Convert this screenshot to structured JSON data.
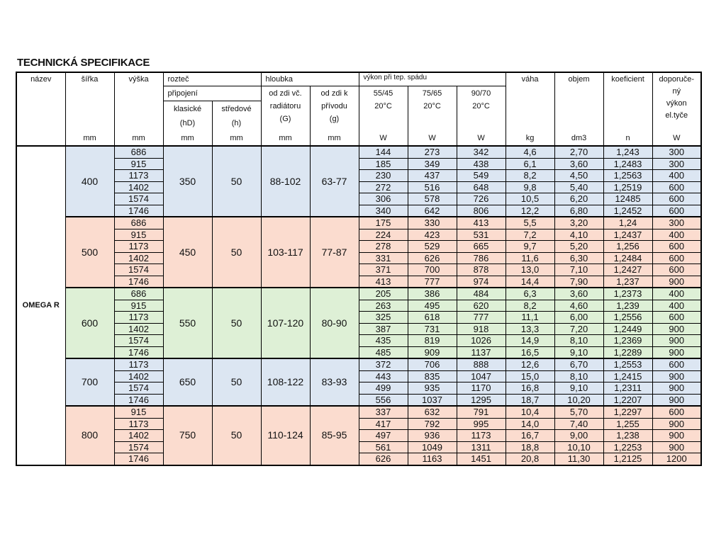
{
  "title": "TECHNICKÁ SPECIFIKACE",
  "headers": {
    "name": "název",
    "width": "šířka",
    "height": "výška",
    "spacing": "rozteč",
    "connection": "připojení",
    "classic": "klasické\n(hD)",
    "central": "středové\n(h)",
    "depth": "hloubka",
    "depth_g_big": "od zdi  vč.\nradiátoru\n(G)",
    "depth_g_small": "od zdi  k\npřívodu\n(g)",
    "output": "výkon při tep. spádu",
    "t1": "55/45\n20°C",
    "t2": "75/65\n20°C",
    "t3": "90/70\n20°C",
    "weight": "váha",
    "volume": "objem",
    "coef": "koeficient",
    "heater": "doporuče-\nný\nvýkon\nel.tyče"
  },
  "units": [
    "",
    "mm",
    "mm",
    "mm",
    "mm",
    "mm",
    "mm",
    "W",
    "W",
    "W",
    "kg",
    "dm3",
    "n",
    "W"
  ],
  "model": "OMEGA R",
  "groups": [
    {
      "width": "400",
      "hD": "350",
      "h": "50",
      "G": "88-102",
      "g": "63-77",
      "color": "#dce6f2",
      "rows": [
        [
          "686",
          "144",
          "273",
          "342",
          "4,6",
          "2,70",
          "1,243",
          "300"
        ],
        [
          "915",
          "185",
          "349",
          "438",
          "6,1",
          "3,60",
          "1,2483",
          "300"
        ],
        [
          "1173",
          "230",
          "437",
          "549",
          "8,2",
          "4,50",
          "1,2563",
          "400"
        ],
        [
          "1402",
          "272",
          "516",
          "648",
          "9,8",
          "5,40",
          "1,2519",
          "600"
        ],
        [
          "1574",
          "306",
          "578",
          "726",
          "10,5",
          "6,20",
          "12485",
          "600"
        ],
        [
          "1746",
          "340",
          "642",
          "806",
          "12,2",
          "6,80",
          "1,2452",
          "600"
        ]
      ]
    },
    {
      "width": "500",
      "hD": "450",
      "h": "50",
      "G": "103-117",
      "g": "77-87",
      "color": "#fbdccf",
      "rows": [
        [
          "686",
          "175",
          "330",
          "413",
          "5,5",
          "3,20",
          "1,24",
          "300"
        ],
        [
          "915",
          "224",
          "423",
          "531",
          "7,2",
          "4,10",
          "1,2437",
          "400"
        ],
        [
          "1173",
          "278",
          "529",
          "665",
          "9,7",
          "5,20",
          "1,256",
          "600"
        ],
        [
          "1402",
          "331",
          "626",
          "786",
          "11,6",
          "6,30",
          "1,2484",
          "600"
        ],
        [
          "1574",
          "371",
          "700",
          "878",
          "13,0",
          "7,10",
          "1,2427",
          "600"
        ],
        [
          "1746",
          "413",
          "777",
          "974",
          "14,4",
          "7,90",
          "1,237",
          "900"
        ]
      ]
    },
    {
      "width": "600",
      "hD": "550",
      "h": "50",
      "G": "107-120",
      "g": "80-90",
      "color": "#def0d6",
      "rows": [
        [
          "686",
          "205",
          "386",
          "484",
          "6,3",
          "3,60",
          "1,2373",
          "400"
        ],
        [
          "915",
          "263",
          "495",
          "620",
          "8,2",
          "4,60",
          "1,239",
          "400"
        ],
        [
          "1173",
          "325",
          "618",
          "777",
          "11,1",
          "6,00",
          "1,2556",
          "600"
        ],
        [
          "1402",
          "387",
          "731",
          "918",
          "13,3",
          "7,20",
          "1,2449",
          "900"
        ],
        [
          "1574",
          "435",
          "819",
          "1026",
          "14,9",
          "8,10",
          "1,2369",
          "900"
        ],
        [
          "1746",
          "485",
          "909",
          "1137",
          "16,5",
          "9,10",
          "1,2289",
          "900"
        ]
      ]
    },
    {
      "width": "700",
      "hD": "650",
      "h": "50",
      "G": "108-122",
      "g": "83-93",
      "color": "#dce6f2",
      "rows": [
        [
          "1173",
          "372",
          "706",
          "888",
          "12,6",
          "6,70",
          "1,2553",
          "600"
        ],
        [
          "1402",
          "443",
          "835",
          "1047",
          "15,0",
          "8,10",
          "1,2415",
          "900"
        ],
        [
          "1574",
          "499",
          "935",
          "1170",
          "16,8",
          "9,10",
          "1,2311",
          "900"
        ],
        [
          "1746",
          "556",
          "1037",
          "1295",
          "18,7",
          "10,20",
          "1,2207",
          "900"
        ]
      ]
    },
    {
      "width": "800",
      "hD": "750",
      "h": "50",
      "G": "110-124",
      "g": "85-95",
      "color": "#fbdccf",
      "rows": [
        [
          "915",
          "337",
          "632",
          "791",
          "10,4",
          "5,70",
          "1,2297",
          "600"
        ],
        [
          "1173",
          "417",
          "792",
          "995",
          "14,0",
          "7,40",
          "1,255",
          "900"
        ],
        [
          "1402",
          "497",
          "936",
          "1173",
          "16,7",
          "9,00",
          "1,238",
          "900"
        ],
        [
          "1574",
          "561",
          "1049",
          "1311",
          "18,8",
          "10,10",
          "1,2253",
          "900"
        ],
        [
          "1746",
          "626",
          "1163",
          "1451",
          "20,8",
          "11,30",
          "1,2125",
          "1200"
        ]
      ]
    }
  ]
}
